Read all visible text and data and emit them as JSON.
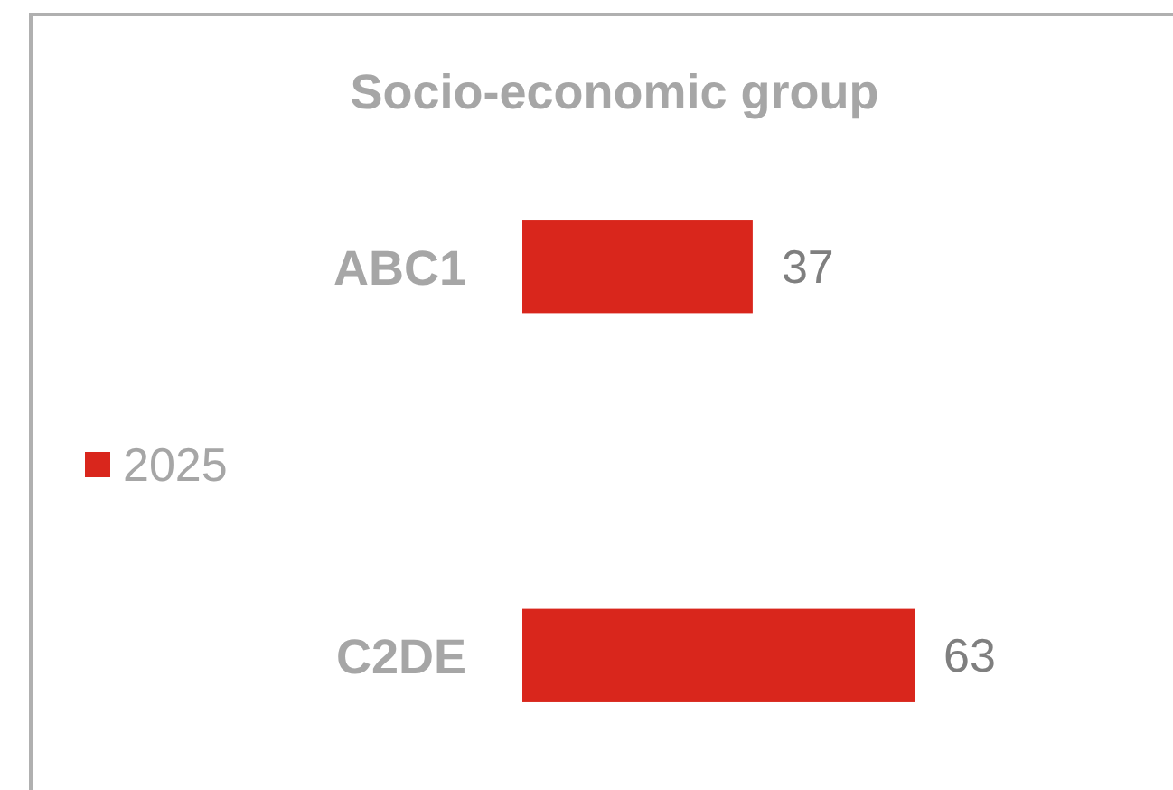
{
  "chart_data": {
    "type": "bar",
    "orientation": "horizontal",
    "title": "Socio-economic group",
    "categories": [
      "ABC1",
      "C2DE"
    ],
    "series": [
      {
        "name": "2025",
        "color": "#d9261c",
        "values": [
          37,
          63
        ]
      }
    ],
    "data_labels": true,
    "legend": "left"
  }
}
